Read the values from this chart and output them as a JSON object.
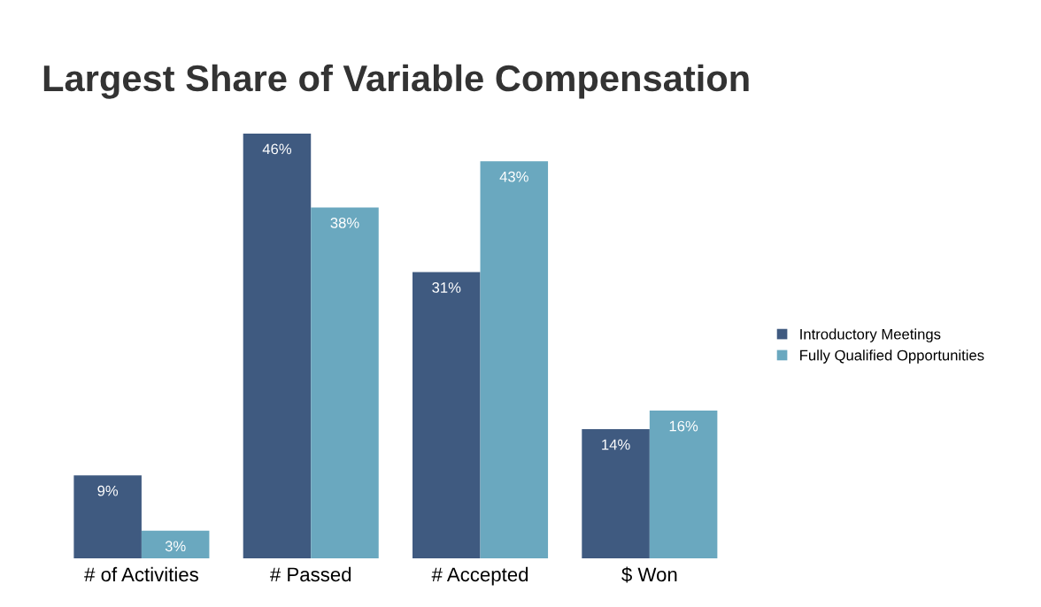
{
  "chart_data": {
    "type": "bar",
    "title": "Largest Share of Variable Compensation",
    "categories": [
      "# of Activities",
      "# Passed",
      "# Accepted",
      "$ Won"
    ],
    "series": [
      {
        "name": "Introductory Meetings",
        "color": "#3f5a80",
        "values": [
          9,
          46,
          31,
          14
        ],
        "value_labels": [
          "9%",
          "46%",
          "31%",
          "14%"
        ]
      },
      {
        "name": "Fully Qualified Opportunities",
        "color": "#6aa8bf",
        "values": [
          3,
          38,
          43,
          16
        ],
        "value_labels": [
          "3%",
          "38%",
          "43%",
          "16%"
        ]
      }
    ],
    "legend": "right",
    "grid": false
  }
}
